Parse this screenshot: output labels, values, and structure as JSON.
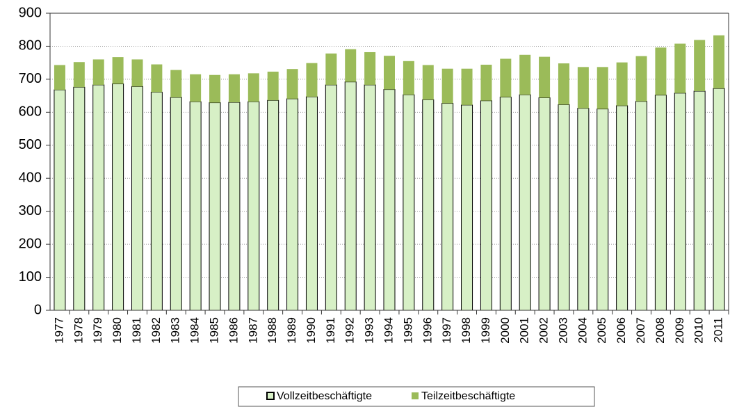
{
  "chart_data": {
    "type": "stacked_bar",
    "categories": [
      "1977",
      "1978",
      "1979",
      "1980",
      "1981",
      "1982",
      "1983",
      "1984",
      "1985",
      "1986",
      "1987",
      "1988",
      "1989",
      "1990",
      "1991",
      "1992",
      "1993",
      "1994",
      "1995",
      "1996",
      "1997",
      "1998",
      "1999",
      "2000",
      "2001",
      "2002",
      "2003",
      "2004",
      "2005",
      "2006",
      "2007",
      "2008",
      "2009",
      "2010",
      "2011"
    ],
    "series": [
      {
        "name": "Vollzeitbeschäftigte",
        "color": "#d7f0c6",
        "values": [
          668,
          676,
          683,
          686,
          678,
          661,
          645,
          632,
          629,
          630,
          632,
          636,
          641,
          647,
          683,
          692,
          683,
          669,
          653,
          638,
          627,
          622,
          635,
          646,
          653,
          644,
          623,
          612,
          610,
          620,
          633,
          652,
          658,
          664,
          672
        ]
      },
      {
        "name": "Teilzeitbeschäftigte",
        "color": "#9bbb59",
        "values": [
          75,
          76,
          77,
          81,
          82,
          84,
          83,
          83,
          84,
          85,
          86,
          87,
          90,
          102,
          95,
          99,
          99,
          102,
          102,
          105,
          105,
          110,
          109,
          116,
          121,
          124,
          125,
          125,
          127,
          131,
          137,
          144,
          150,
          155,
          161
        ]
      }
    ],
    "ylim": [
      0,
      900
    ],
    "yticks": [
      0,
      100,
      200,
      300,
      400,
      500,
      600,
      700,
      800,
      900
    ],
    "grid": true,
    "legend": "bottom"
  }
}
